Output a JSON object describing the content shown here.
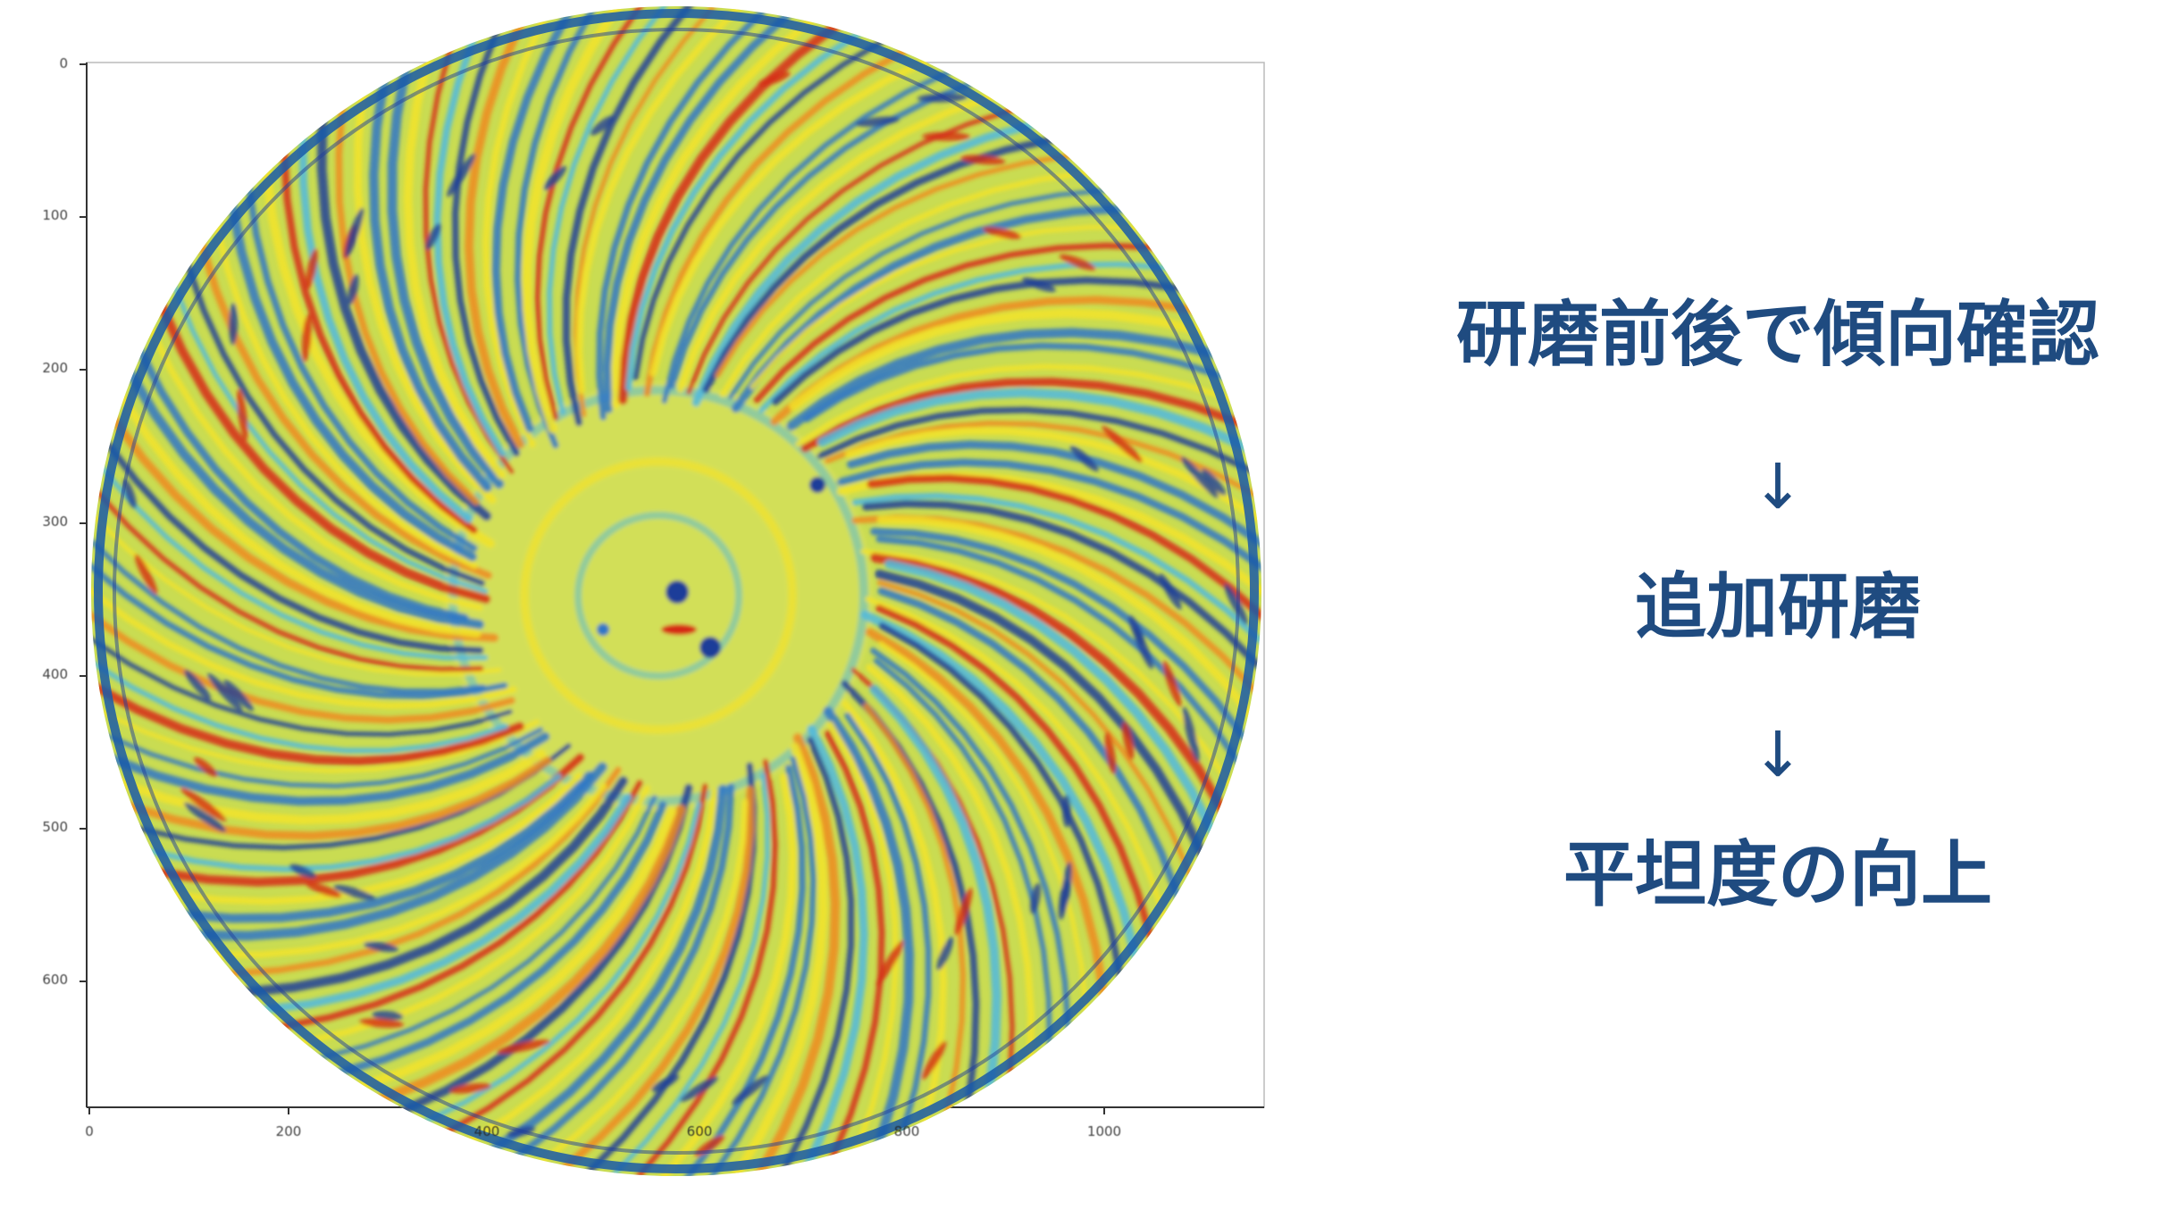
{
  "figure": {
    "y_ticks": [
      "0",
      "100",
      "200",
      "300",
      "400",
      "500",
      "600"
    ],
    "x_ticks": [
      "0",
      "200",
      "400",
      "600",
      "800",
      "1000"
    ],
    "colors": {
      "background": "#c9dc52",
      "ring": "#1a5aa8",
      "cool": "#2e76c8",
      "cyan": "#4fb8e0",
      "warm": "#f2e32a",
      "orange": "#ef8a1e",
      "hot": "#d62a14",
      "deep": "#1f3e99"
    }
  },
  "flow": {
    "step1": "研磨前後で傾向確認",
    "arrow1": "↓",
    "step2": "追加研磨",
    "arrow2": "↓",
    "step3": "平坦度の向上"
  }
}
